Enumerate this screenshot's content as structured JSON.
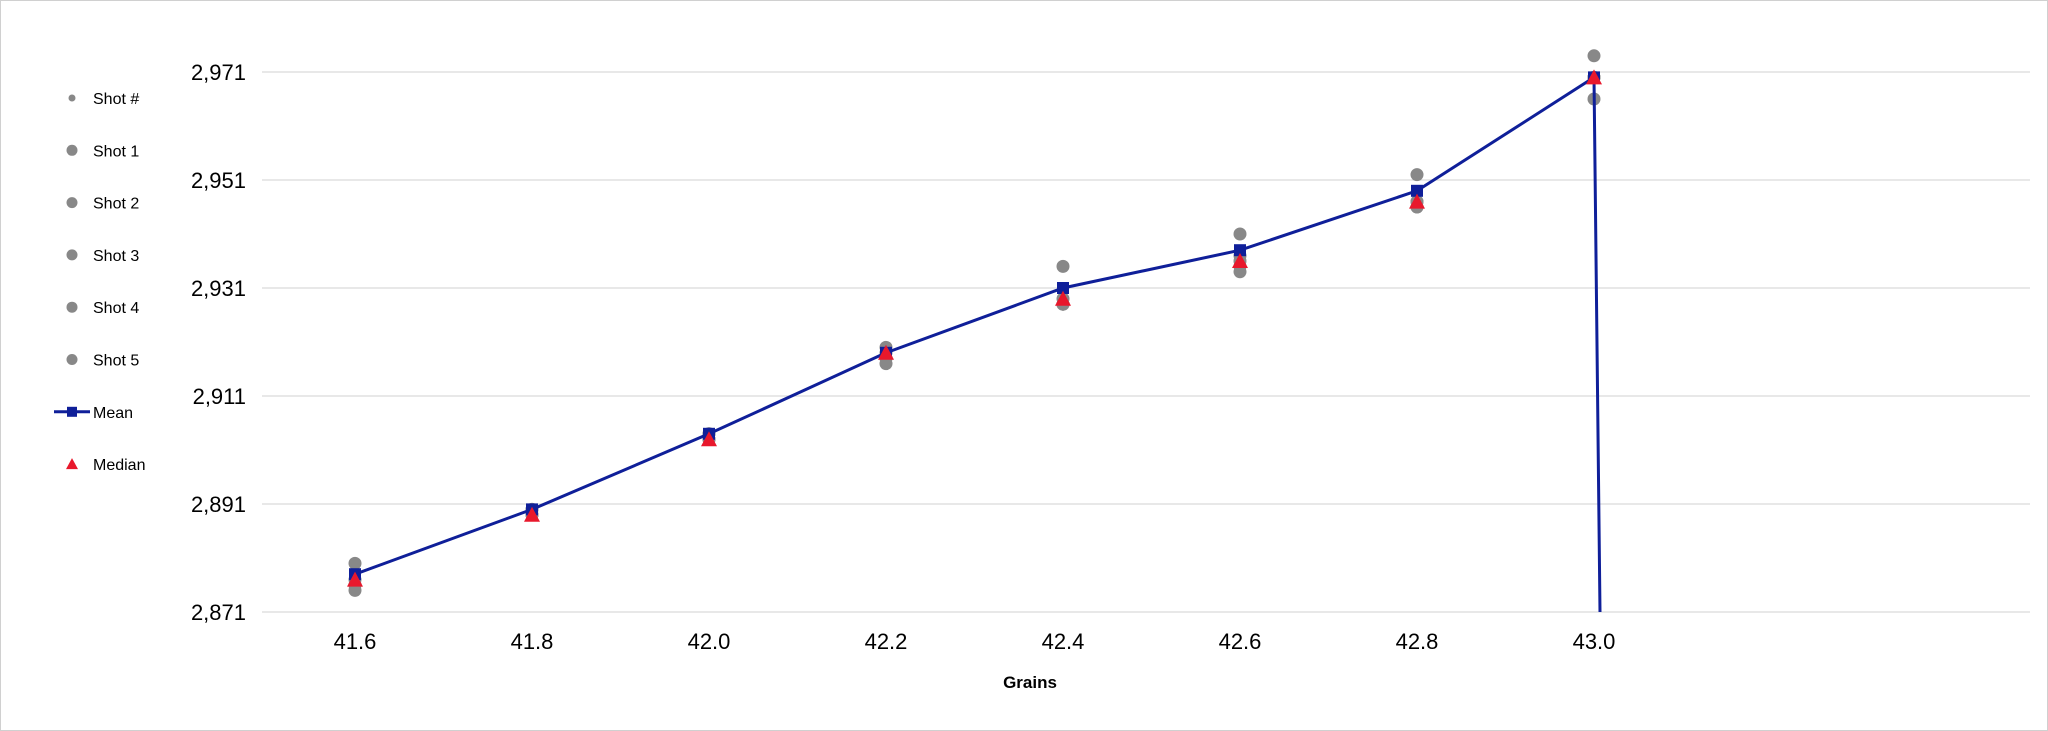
{
  "chart_data": {
    "type": "scatter",
    "title": "",
    "xlabel": "Grains",
    "ylabel": "",
    "categories": [
      "41.6",
      "41.8",
      "42.0",
      "42.2",
      "42.4",
      "42.6",
      "42.8",
      "43.0"
    ],
    "y_tick_labels": [
      "2,971",
      "2,951",
      "2,931",
      "2,911",
      "2,891",
      "2,871"
    ],
    "y_ticks": [
      2971,
      2951,
      2931,
      2911,
      2891,
      2871
    ],
    "ylim": [
      2871,
      2971
    ],
    "grid": "horizontal",
    "legend_position": "left",
    "legend": [
      "Shot #",
      "Shot 1",
      "Shot 2",
      "Shot 3",
      "Shot 4",
      "Shot 5",
      "Mean",
      "Median"
    ],
    "colors": {
      "shots": "#888888",
      "mean": "#0f1f99",
      "median": "#e8182c",
      "grid": "#d9d9d9"
    },
    "series": [
      {
        "name": "Shot #",
        "values": []
      },
      {
        "name": "Shot 1",
        "values": [
          2880,
          2890,
          2904,
          2920,
          2935,
          2941,
          2952,
          2974
        ]
      },
      {
        "name": "Shot 2",
        "values": [
          2876,
          2890,
          2904,
          2919,
          2929,
          2937,
          2947,
          2970
        ]
      },
      {
        "name": "Shot 3",
        "values": [
          2875,
          2889,
          2903,
          2918,
          2928,
          2936,
          2947,
          2970
        ]
      },
      {
        "name": "Shot 4",
        "values": [
          2877,
          2889,
          2903,
          2918,
          2928,
          2935,
          2946,
          2966
        ]
      },
      {
        "name": "Shot 5",
        "values": [
          2876,
          2889,
          2903,
          2917,
          2928,
          2934,
          2946,
          2970
        ]
      },
      {
        "name": "Mean",
        "values": [
          2878,
          2890,
          2904,
          2919,
          2931,
          2938,
          2949,
          2970
        ]
      },
      {
        "name": "Median",
        "values": [
          2877,
          2889,
          2903,
          2919,
          2929,
          2936,
          2947,
          2970
        ]
      }
    ],
    "mean_line_drop_to": 2871
  }
}
